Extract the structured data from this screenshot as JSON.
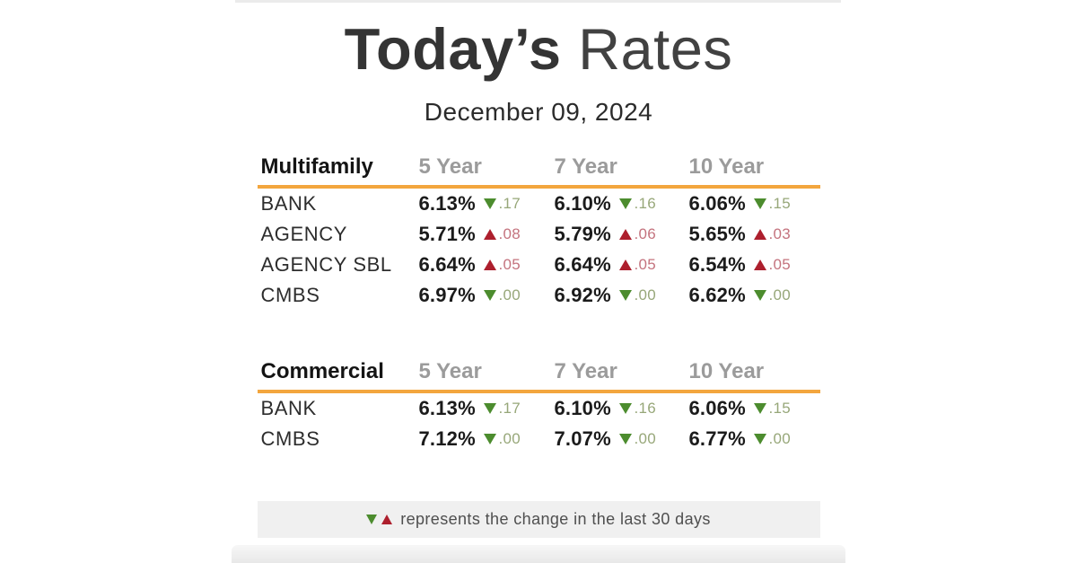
{
  "title": {
    "emphasis": "Today’s",
    "rest": " Rates"
  },
  "date": "December 09, 2024",
  "legend": {
    "text": "represents the change in the last 30 days",
    "icons": [
      "down-arrow",
      "up-arrow"
    ]
  },
  "colors": {
    "accent_rule": "#F3A63E",
    "down_arrow": "#4C8C2E",
    "up_arrow": "#AD1F2D",
    "down_change_text": "#97A779",
    "up_change_text": "#C4737E",
    "column_header_gray": "#9B9B9B",
    "background": "#FFFFFF"
  },
  "chart_data": [
    {
      "type": "table",
      "title": "Multifamily",
      "columns": [
        "5 Year",
        "7 Year",
        "10 Year"
      ],
      "rows": [
        {
          "label": "BANK",
          "cells": [
            {
              "rate": "6.13%",
              "direction": "down",
              "change": ".17"
            },
            {
              "rate": "6.10%",
              "direction": "down",
              "change": ".16"
            },
            {
              "rate": "6.06%",
              "direction": "down",
              "change": ".15"
            }
          ]
        },
        {
          "label": "AGENCY",
          "cells": [
            {
              "rate": "5.71%",
              "direction": "up",
              "change": ".08"
            },
            {
              "rate": "5.79%",
              "direction": "up",
              "change": ".06"
            },
            {
              "rate": "5.65%",
              "direction": "up",
              "change": ".03"
            }
          ]
        },
        {
          "label": "AGENCY SBL",
          "cells": [
            {
              "rate": "6.64%",
              "direction": "up",
              "change": ".05"
            },
            {
              "rate": "6.64%",
              "direction": "up",
              "change": ".05"
            },
            {
              "rate": "6.54%",
              "direction": "up",
              "change": ".05"
            }
          ]
        },
        {
          "label": "CMBS",
          "cells": [
            {
              "rate": "6.97%",
              "direction": "down",
              "change": ".00"
            },
            {
              "rate": "6.92%",
              "direction": "down",
              "change": ".00"
            },
            {
              "rate": "6.62%",
              "direction": "down",
              "change": ".00"
            }
          ]
        }
      ]
    },
    {
      "type": "table",
      "title": "Commercial",
      "columns": [
        "5 Year",
        "7 Year",
        "10 Year"
      ],
      "rows": [
        {
          "label": "BANK",
          "cells": [
            {
              "rate": "6.13%",
              "direction": "down",
              "change": ".17"
            },
            {
              "rate": "6.10%",
              "direction": "down",
              "change": ".16"
            },
            {
              "rate": "6.06%",
              "direction": "down",
              "change": ".15"
            }
          ]
        },
        {
          "label": "CMBS",
          "cells": [
            {
              "rate": "7.12%",
              "direction": "down",
              "change": ".00"
            },
            {
              "rate": "7.07%",
              "direction": "down",
              "change": ".00"
            },
            {
              "rate": "6.77%",
              "direction": "down",
              "change": ".00"
            }
          ]
        }
      ]
    }
  ]
}
